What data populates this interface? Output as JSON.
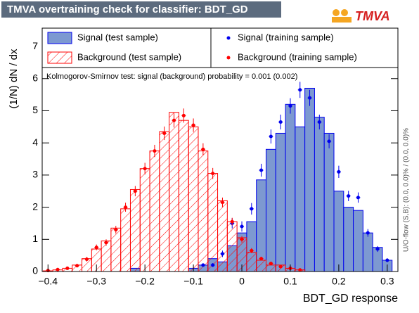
{
  "chart_data": {
    "type": "histogram",
    "title": "TMVA overtraining check for classifier: BDT_GD",
    "logo": "TMVA",
    "xlabel": "BDT_GD response",
    "ylabel": "(1/N) dN / dx",
    "annotation": "Kolmogorov-Smirnov test: signal (background) probability = 0.001 (0.002)",
    "side_note": "U/O-flow (S,B): (0.0, 0.0)% / (0.0, 0.0)%",
    "bins": [
      -0.41,
      -0.39,
      -0.37,
      -0.35,
      -0.33,
      -0.31,
      -0.29,
      -0.27,
      -0.25,
      -0.23,
      -0.21,
      -0.19,
      -0.17,
      -0.15,
      -0.13,
      -0.11,
      -0.09,
      -0.07,
      -0.05,
      -0.03,
      -0.01,
      0.01,
      0.03,
      0.05,
      0.07,
      0.09,
      0.11,
      0.13,
      0.15,
      0.17,
      0.19,
      0.21,
      0.23,
      0.25,
      0.27,
      0.29,
      0.31
    ],
    "xlim": [
      -0.412,
      0.322
    ],
    "ylim": [
      0,
      7.57
    ],
    "xticks": [
      {
        "value": -0.4,
        "label": "−0.4"
      },
      {
        "value": -0.3,
        "label": "−0.3"
      },
      {
        "value": -0.2,
        "label": "−0.2"
      },
      {
        "value": -0.1,
        "label": "−0.1"
      },
      0,
      0.1,
      0.2,
      0.3
    ],
    "yticks": [
      0,
      1,
      2,
      3,
      4,
      5,
      6,
      7
    ],
    "series": [
      {
        "name": "Signal (test sample)",
        "style": "filled",
        "color": "#0000ee",
        "fill": "#7d99d1",
        "values": [
          0,
          0,
          0,
          0,
          0,
          0,
          0,
          0,
          0,
          0.1,
          0,
          0,
          0,
          0,
          0,
          0.1,
          0.2,
          0.4,
          0.3,
          0.8,
          1.2,
          1.55,
          2.85,
          3.8,
          4.3,
          5.2,
          4.5,
          5.7,
          4.8,
          4.3,
          2.5,
          2.0,
          1.9,
          1.2,
          0.75,
          0.35
        ]
      },
      {
        "name": "Background (test sample)",
        "style": "hatched",
        "color": "#ff0000",
        "values": [
          0.02,
          0.05,
          0.1,
          0.2,
          0.4,
          0.7,
          0.95,
          1.35,
          1.95,
          2.55,
          3.2,
          3.75,
          4.35,
          4.95,
          4.7,
          4.5,
          3.75,
          3.05,
          2.2,
          1.55,
          1.05,
          0.6,
          0.35,
          0.2,
          0.2,
          0.1,
          0.05,
          0,
          0,
          0,
          0,
          0,
          0,
          0,
          0,
          0
        ]
      },
      {
        "name": "Signal (training sample)",
        "style": "points",
        "color": "#0000ee",
        "values": [
          null,
          null,
          null,
          null,
          null,
          null,
          null,
          null,
          null,
          null,
          null,
          null,
          null,
          null,
          null,
          null,
          0.2,
          0.2,
          0.55,
          1.5,
          1.4,
          1.95,
          3.15,
          4.2,
          4.65,
          5.15,
          5.65,
          5.4,
          4.65,
          4.05,
          3.1,
          2.35,
          2.3,
          1.2,
          0.7,
          0.35
        ],
        "errors": [
          null,
          null,
          null,
          null,
          null,
          null,
          null,
          null,
          null,
          null,
          null,
          null,
          null,
          null,
          null,
          null,
          0.05,
          0.06,
          0.1,
          0.16,
          0.16,
          0.18,
          0.2,
          0.22,
          0.23,
          0.24,
          0.25,
          0.25,
          0.23,
          0.22,
          0.19,
          0.16,
          0.16,
          0.12,
          0.09,
          0.06
        ]
      },
      {
        "name": "Background (training sample)",
        "style": "points",
        "color": "#ff0000",
        "values": [
          0.03,
          0.06,
          0.1,
          0.18,
          0.38,
          0.75,
          0.9,
          1.3,
          2.0,
          2.5,
          3.2,
          3.75,
          4.3,
          4.7,
          4.85,
          4.55,
          3.8,
          3.05,
          2.15,
          1.55,
          1.0,
          0.65,
          0.4,
          0.25,
          0.15,
          0.1,
          0.05,
          null,
          null,
          null,
          null,
          null,
          null,
          null,
          null,
          null
        ],
        "errors": [
          0.02,
          0.03,
          0.04,
          0.05,
          0.07,
          0.09,
          0.1,
          0.12,
          0.14,
          0.16,
          0.18,
          0.19,
          0.21,
          0.22,
          0.22,
          0.21,
          0.19,
          0.17,
          0.15,
          0.12,
          0.1,
          0.08,
          0.06,
          0.05,
          0.04,
          0.03,
          0.02,
          null,
          null,
          null,
          null,
          null,
          null,
          null,
          null,
          null
        ]
      }
    ]
  }
}
